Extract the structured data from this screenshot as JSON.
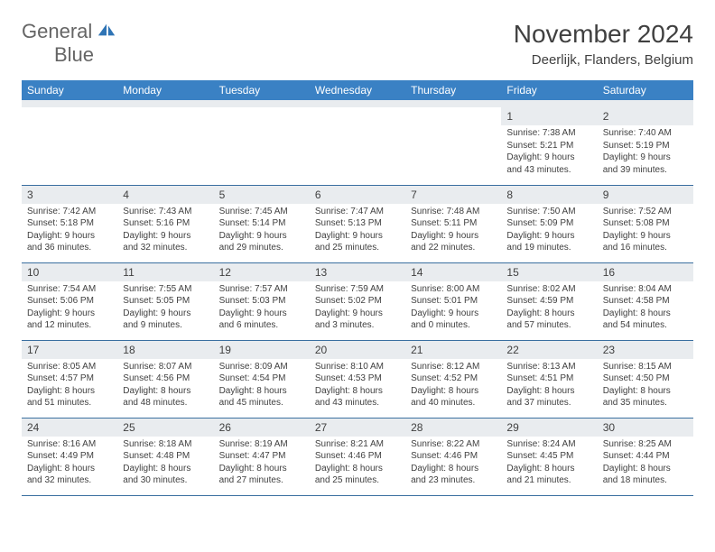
{
  "logo": {
    "word1": "General",
    "word2": "Blue"
  },
  "title": "November 2024",
  "location": "Deerlijk, Flanders, Belgium",
  "columns": [
    "Sunday",
    "Monday",
    "Tuesday",
    "Wednesday",
    "Thursday",
    "Friday",
    "Saturday"
  ],
  "colors": {
    "header_bg": "#3a81c4",
    "header_text": "#ffffff",
    "daynum_bg": "#e9ecef",
    "border": "#3a6fa0",
    "logo_blue": "#2f74b5",
    "body_text": "#404040"
  },
  "first_weekday_index": 5,
  "days": [
    {
      "n": 1,
      "sunrise": "7:38 AM",
      "sunset": "5:21 PM",
      "daylight": "9 hours and 43 minutes."
    },
    {
      "n": 2,
      "sunrise": "7:40 AM",
      "sunset": "5:19 PM",
      "daylight": "9 hours and 39 minutes."
    },
    {
      "n": 3,
      "sunrise": "7:42 AM",
      "sunset": "5:18 PM",
      "daylight": "9 hours and 36 minutes."
    },
    {
      "n": 4,
      "sunrise": "7:43 AM",
      "sunset": "5:16 PM",
      "daylight": "9 hours and 32 minutes."
    },
    {
      "n": 5,
      "sunrise": "7:45 AM",
      "sunset": "5:14 PM",
      "daylight": "9 hours and 29 minutes."
    },
    {
      "n": 6,
      "sunrise": "7:47 AM",
      "sunset": "5:13 PM",
      "daylight": "9 hours and 25 minutes."
    },
    {
      "n": 7,
      "sunrise": "7:48 AM",
      "sunset": "5:11 PM",
      "daylight": "9 hours and 22 minutes."
    },
    {
      "n": 8,
      "sunrise": "7:50 AM",
      "sunset": "5:09 PM",
      "daylight": "9 hours and 19 minutes."
    },
    {
      "n": 9,
      "sunrise": "7:52 AM",
      "sunset": "5:08 PM",
      "daylight": "9 hours and 16 minutes."
    },
    {
      "n": 10,
      "sunrise": "7:54 AM",
      "sunset": "5:06 PM",
      "daylight": "9 hours and 12 minutes."
    },
    {
      "n": 11,
      "sunrise": "7:55 AM",
      "sunset": "5:05 PM",
      "daylight": "9 hours and 9 minutes."
    },
    {
      "n": 12,
      "sunrise": "7:57 AM",
      "sunset": "5:03 PM",
      "daylight": "9 hours and 6 minutes."
    },
    {
      "n": 13,
      "sunrise": "7:59 AM",
      "sunset": "5:02 PM",
      "daylight": "9 hours and 3 minutes."
    },
    {
      "n": 14,
      "sunrise": "8:00 AM",
      "sunset": "5:01 PM",
      "daylight": "9 hours and 0 minutes."
    },
    {
      "n": 15,
      "sunrise": "8:02 AM",
      "sunset": "4:59 PM",
      "daylight": "8 hours and 57 minutes."
    },
    {
      "n": 16,
      "sunrise": "8:04 AM",
      "sunset": "4:58 PM",
      "daylight": "8 hours and 54 minutes."
    },
    {
      "n": 17,
      "sunrise": "8:05 AM",
      "sunset": "4:57 PM",
      "daylight": "8 hours and 51 minutes."
    },
    {
      "n": 18,
      "sunrise": "8:07 AM",
      "sunset": "4:56 PM",
      "daylight": "8 hours and 48 minutes."
    },
    {
      "n": 19,
      "sunrise": "8:09 AM",
      "sunset": "4:54 PM",
      "daylight": "8 hours and 45 minutes."
    },
    {
      "n": 20,
      "sunrise": "8:10 AM",
      "sunset": "4:53 PM",
      "daylight": "8 hours and 43 minutes."
    },
    {
      "n": 21,
      "sunrise": "8:12 AM",
      "sunset": "4:52 PM",
      "daylight": "8 hours and 40 minutes."
    },
    {
      "n": 22,
      "sunrise": "8:13 AM",
      "sunset": "4:51 PM",
      "daylight": "8 hours and 37 minutes."
    },
    {
      "n": 23,
      "sunrise": "8:15 AM",
      "sunset": "4:50 PM",
      "daylight": "8 hours and 35 minutes."
    },
    {
      "n": 24,
      "sunrise": "8:16 AM",
      "sunset": "4:49 PM",
      "daylight": "8 hours and 32 minutes."
    },
    {
      "n": 25,
      "sunrise": "8:18 AM",
      "sunset": "4:48 PM",
      "daylight": "8 hours and 30 minutes."
    },
    {
      "n": 26,
      "sunrise": "8:19 AM",
      "sunset": "4:47 PM",
      "daylight": "8 hours and 27 minutes."
    },
    {
      "n": 27,
      "sunrise": "8:21 AM",
      "sunset": "4:46 PM",
      "daylight": "8 hours and 25 minutes."
    },
    {
      "n": 28,
      "sunrise": "8:22 AM",
      "sunset": "4:46 PM",
      "daylight": "8 hours and 23 minutes."
    },
    {
      "n": 29,
      "sunrise": "8:24 AM",
      "sunset": "4:45 PM",
      "daylight": "8 hours and 21 minutes."
    },
    {
      "n": 30,
      "sunrise": "8:25 AM",
      "sunset": "4:44 PM",
      "daylight": "8 hours and 18 minutes."
    }
  ],
  "labels": {
    "sunrise": "Sunrise:",
    "sunset": "Sunset:",
    "daylight": "Daylight:"
  }
}
